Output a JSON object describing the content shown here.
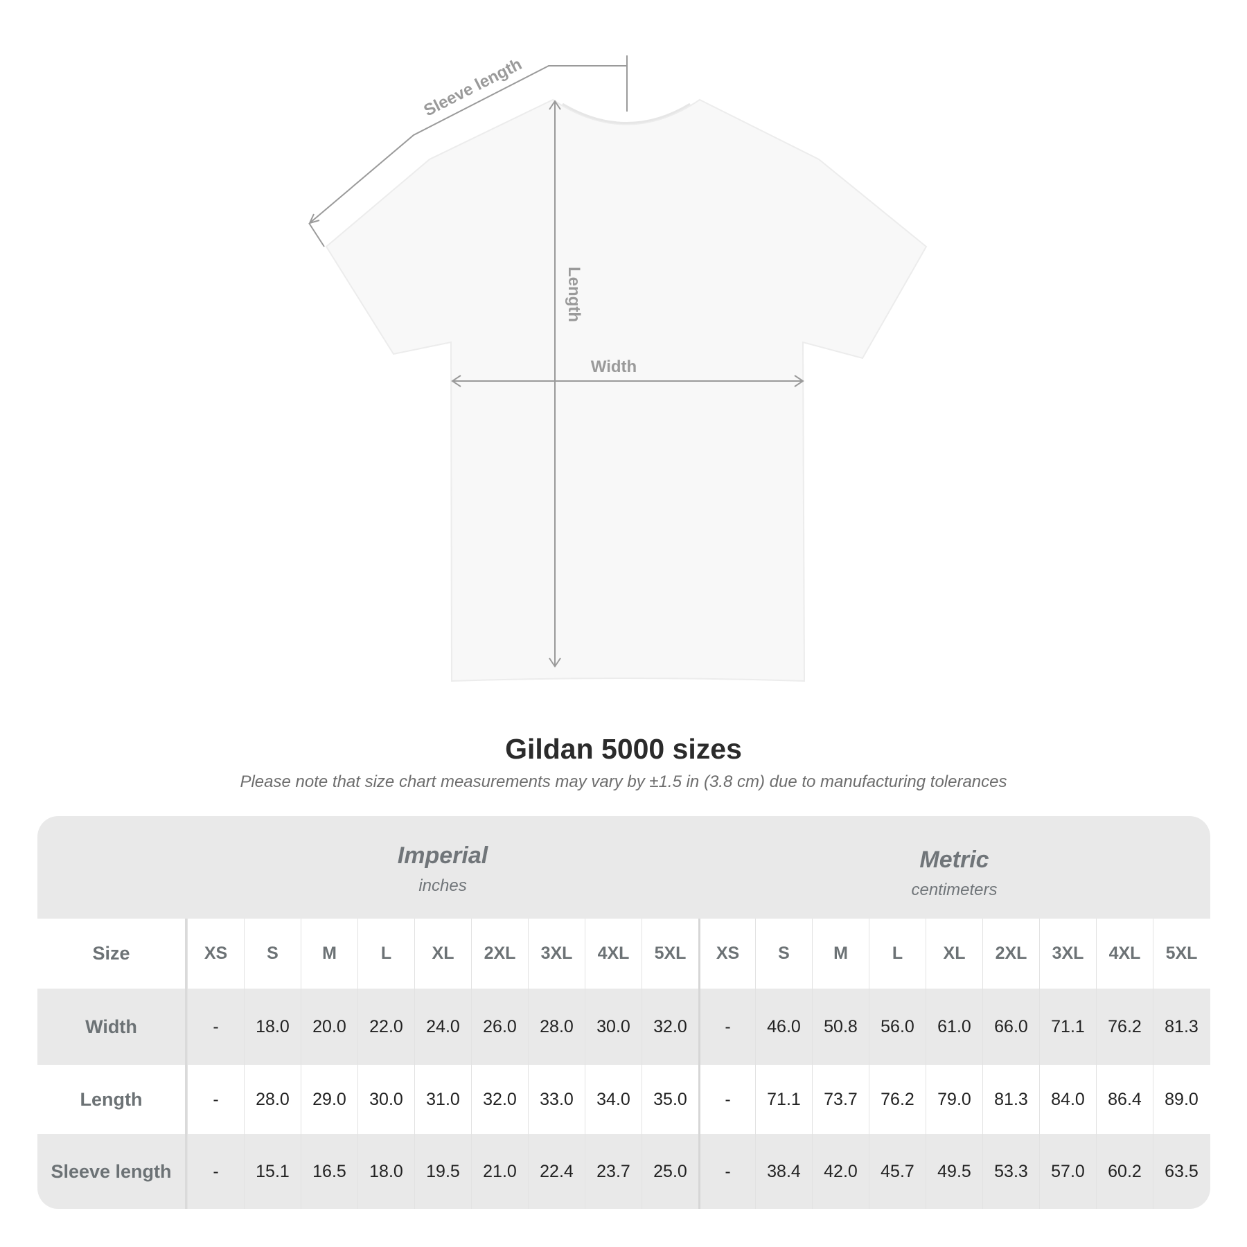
{
  "diagram": {
    "labels": {
      "sleeve": "Sleeve length",
      "length": "Length",
      "width": "Width"
    }
  },
  "title": "Gildan 5000 sizes",
  "subtitle": "Please note that size chart measurements may vary by ±1.5 in (3.8 cm) due to manufacturing tolerances",
  "table": {
    "imperial": {
      "name": "Imperial",
      "unit": "inches"
    },
    "metric": {
      "name": "Metric",
      "unit": "centimeters"
    },
    "size_label": "Size",
    "sizes": [
      "XS",
      "S",
      "M",
      "L",
      "XL",
      "2XL",
      "3XL",
      "4XL",
      "5XL",
      "XS",
      "S",
      "M",
      "L",
      "XL",
      "2XL",
      "3XL",
      "4XL",
      "5XL"
    ],
    "rows": [
      {
        "label": "Width",
        "values": [
          "-",
          "18.0",
          "20.0",
          "22.0",
          "24.0",
          "26.0",
          "28.0",
          "30.0",
          "32.0",
          "-",
          "46.0",
          "50.8",
          "56.0",
          "61.0",
          "66.0",
          "71.1",
          "76.2",
          "81.3"
        ]
      },
      {
        "label": "Length",
        "values": [
          "-",
          "28.0",
          "29.0",
          "30.0",
          "31.0",
          "32.0",
          "33.0",
          "34.0",
          "35.0",
          "-",
          "71.1",
          "73.7",
          "76.2",
          "79.0",
          "81.3",
          "84.0",
          "86.4",
          "89.0"
        ]
      },
      {
        "label": "Sleeve length",
        "values": [
          "-",
          "15.1",
          "16.5",
          "18.0",
          "19.5",
          "21.0",
          "22.4",
          "23.7",
          "25.0",
          "-",
          "38.4",
          "42.0",
          "45.7",
          "49.5",
          "53.3",
          "57.0",
          "60.2",
          "63.5"
        ]
      }
    ]
  }
}
